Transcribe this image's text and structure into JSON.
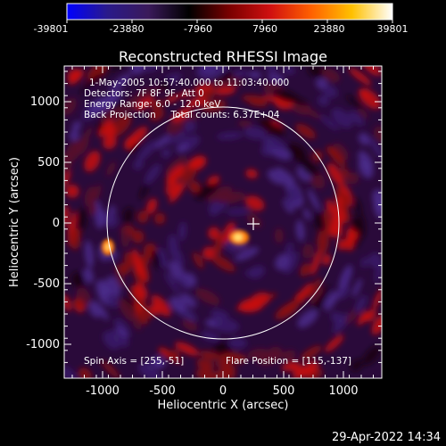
{
  "colorbar": {
    "tick_labels": [
      "-39801",
      "-23880",
      "-7960",
      "7960",
      "23880",
      "39801"
    ],
    "stops": [
      "#0000ff",
      "#2a1a8a",
      "#3a1a5a",
      "#000000",
      "#7a0000",
      "#d01010",
      "#ff6000",
      "#ffc000",
      "#ffffff"
    ]
  },
  "plot": {
    "title": "Reconstructed RHESSI Image",
    "xlabel": "Heliocentric X (arcsec)",
    "ylabel": "Heliocentric Y (arcsec)",
    "xticks": [
      "-1000",
      "-500",
      "0",
      "500",
      "1000"
    ],
    "yticks": [
      "1000",
      "500",
      "0",
      "-500",
      "-1000"
    ],
    "info_lines": [
      "1-May-2005 10:57:40.000 to 11:03:40.000",
      "Detectors: 7F 8F 9F, Att 0",
      "Energy Range: 6.0 - 12.0 keV",
      "Back Projection     Total counts: 6.37E+04"
    ],
    "spin_axis": "Spin Axis = [255,-51]",
    "flare_position": "Flare Position = [115,-137]"
  },
  "footer": {
    "date": "29-Apr-2022 14:34"
  }
}
